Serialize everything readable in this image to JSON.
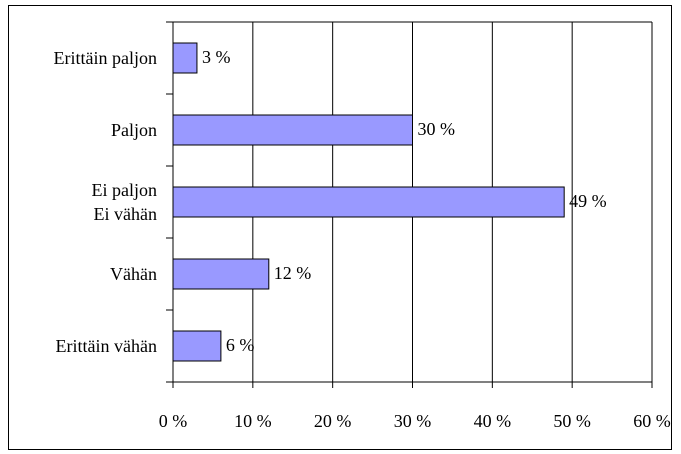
{
  "chart_data": {
    "type": "bar",
    "orientation": "horizontal",
    "categories": [
      "Erittäin paljon",
      "Paljon",
      "Ei paljon\nEi vähän",
      "Vähän",
      "Erittäin vähän"
    ],
    "values": [
      3,
      30,
      49,
      12,
      6
    ],
    "value_labels": [
      "3 %",
      "30 %",
      "49 %",
      "12 %",
      "6 %"
    ],
    "color": "#9999ff",
    "xlim": [
      0,
      60
    ],
    "xticks": [
      {
        "value": 0,
        "label": "0 %"
      },
      {
        "value": 10,
        "label": "10 %"
      },
      {
        "value": 20,
        "label": "20 %"
      },
      {
        "value": 30,
        "label": "30 %"
      },
      {
        "value": 40,
        "label": "40 %"
      },
      {
        "value": 50,
        "label": "50 %"
      },
      {
        "value": 60,
        "label": "60 %"
      }
    ],
    "grid": true
  }
}
